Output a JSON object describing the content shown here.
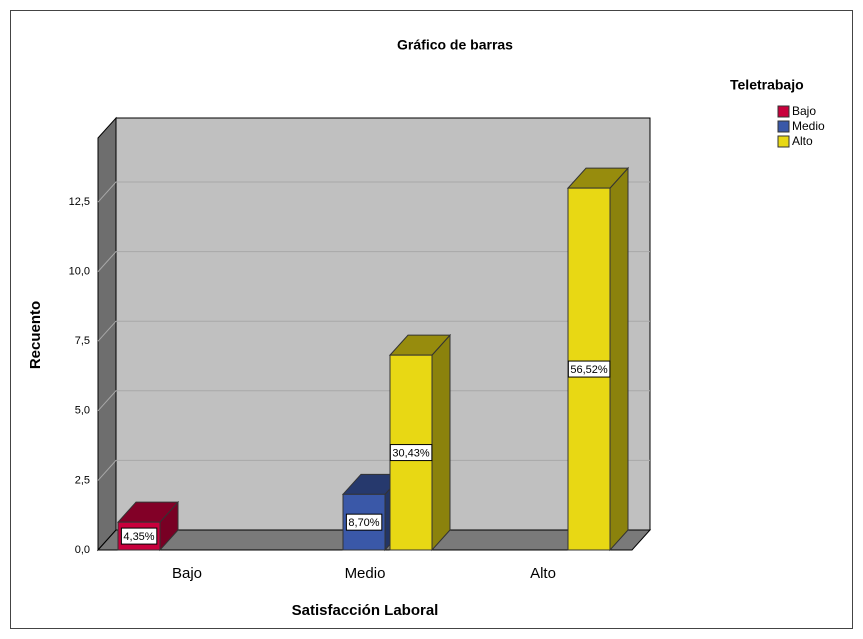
{
  "chart_data": {
    "type": "bar3d",
    "title": "Gráfico de barras",
    "x_label": "Satisfacción Laboral",
    "y_label": "Recuento",
    "legend_title": "Teletrabajo",
    "categories": [
      "Bajo",
      "Medio",
      "Alto"
    ],
    "series": [
      {
        "name": "Bajo",
        "color": "#c8003c",
        "values": [
          1,
          null,
          null
        ],
        "percent_labels": [
          "4,35%",
          null,
          null
        ]
      },
      {
        "name": "Medio",
        "color": "#3a58a8",
        "values": [
          null,
          2,
          null
        ],
        "percent_labels": [
          null,
          "8,70%",
          null
        ]
      },
      {
        "name": "Alto",
        "color": "#e8d814",
        "values": [
          null,
          7,
          13
        ],
        "percent_labels": [
          null,
          "30,43%",
          "56,52%"
        ]
      }
    ],
    "ylim": [
      0,
      14.8
    ],
    "yticks": [
      {
        "value": 0,
        "label": "0,0"
      },
      {
        "value": 2.5,
        "label": "2,5"
      },
      {
        "value": 5,
        "label": "5,0"
      },
      {
        "value": 7.5,
        "label": "7,5"
      },
      {
        "value": 10,
        "label": "10,0"
      },
      {
        "value": 12.5,
        "label": "12,5"
      }
    ],
    "grid": true,
    "legend": "right"
  }
}
